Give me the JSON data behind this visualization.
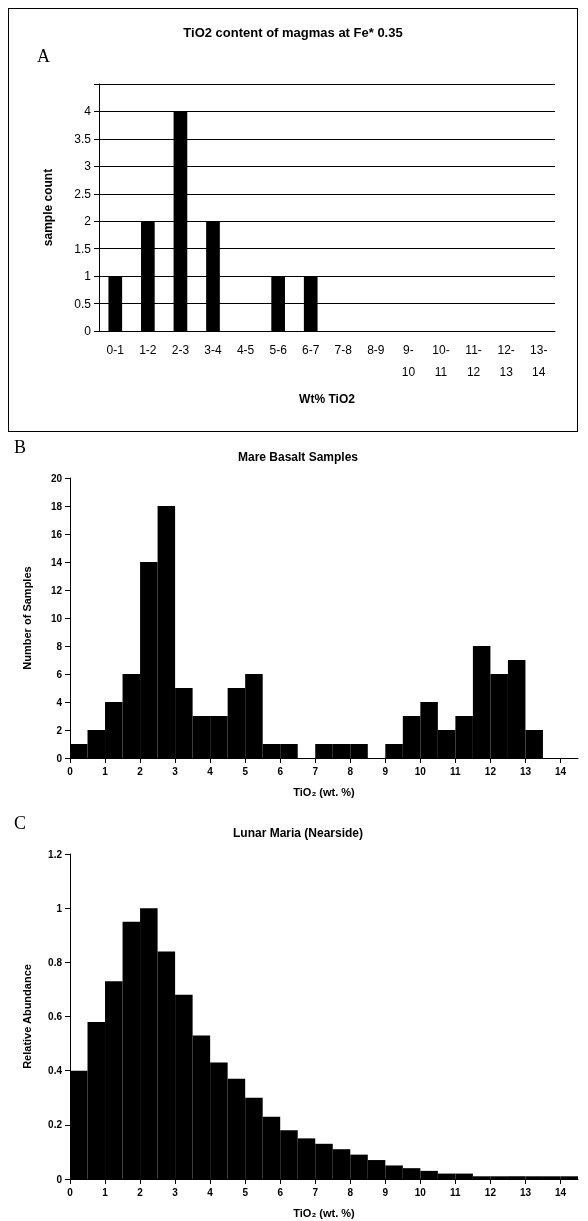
{
  "chart_data": [
    {
      "type": "bar",
      "title": "TiO2 content of magmas at Fe* 0.35",
      "xlabel": "Wt% TiO2",
      "ylabel": "sample count",
      "annotations": [
        "A"
      ],
      "categories": [
        "0-1",
        "1-2",
        "2-3",
        "3-4",
        "4-5",
        "5-6",
        "6-7",
        "7-8",
        "8-9",
        "9-10",
        "10-11",
        "11-12",
        "12-13",
        "13-14"
      ],
      "values": [
        1,
        2,
        4,
        2,
        0,
        1,
        1,
        0,
        0,
        0,
        0,
        0,
        0,
        0
      ],
      "color": "#000000",
      "ylim": [
        0,
        4.5
      ],
      "yticks": [
        0,
        0.5,
        1,
        1.5,
        2,
        2.5,
        3,
        3.5,
        4,
        {
          "value": 4.5,
          "label": null
        }
      ],
      "grid": "y"
    },
    {
      "type": "histogram",
      "title": "Mare Basalt Samples",
      "xlabel": "TiO₂ (wt. %)",
      "ylabel": "Number of Samples",
      "annotations": [
        "B"
      ],
      "bins": [
        0,
        0.5,
        1,
        1.5,
        2,
        2.5,
        3,
        3.5,
        4,
        4.5,
        5,
        5.5,
        6,
        6.5,
        7,
        7.5,
        8,
        8.5,
        9,
        9.5,
        10,
        10.5,
        11,
        11.5,
        12,
        12.5,
        13,
        13.5
      ],
      "values": [
        1,
        2,
        4,
        6,
        14,
        18,
        5,
        3,
        3,
        5,
        6,
        1,
        1,
        0,
        1,
        1,
        1,
        0,
        1,
        3,
        4,
        2,
        3,
        8,
        6,
        7,
        2
      ],
      "color": "#000000",
      "xlim": [
        0,
        14.5
      ],
      "xticks": [
        0,
        1,
        2,
        3,
        4,
        5,
        6,
        7,
        8,
        9,
        10,
        11,
        12,
        13,
        14
      ],
      "ylim": [
        0,
        20
      ],
      "yticks": [
        0,
        2,
        4,
        6,
        8,
        10,
        12,
        14,
        16,
        18,
        20
      ],
      "grid": false
    },
    {
      "type": "histogram",
      "title": "Lunar Maria (Nearside)",
      "xlabel": "TiO₂ (wt. %)",
      "ylabel": "Relative Abundance",
      "annotations": [
        "C"
      ],
      "bins": [
        0,
        0.5,
        1,
        1.5,
        2,
        2.5,
        3,
        3.5,
        4,
        4.5,
        5,
        5.5,
        6,
        6.5,
        7,
        7.5,
        8,
        8.5,
        9,
        9.5,
        10,
        10.5,
        11,
        11.5,
        12,
        12.5,
        13,
        13.5,
        14,
        14.5
      ],
      "values": [
        0.4,
        0.58,
        0.73,
        0.95,
        1.0,
        0.84,
        0.68,
        0.53,
        0.43,
        0.37,
        0.3,
        0.23,
        0.18,
        0.15,
        0.13,
        0.11,
        0.09,
        0.07,
        0.05,
        0.04,
        0.03,
        0.02,
        0.02,
        0.01,
        0.01,
        0.01,
        0.01,
        0.01,
        0.01
      ],
      "color": "#000000",
      "xlim": [
        0,
        14.5
      ],
      "xticks": [
        0,
        1,
        2,
        3,
        4,
        5,
        6,
        7,
        8,
        9,
        10,
        11,
        12,
        13,
        14
      ],
      "ylim": [
        0,
        1.2
      ],
      "yticks": [
        0,
        0.2,
        0.4,
        0.6,
        0.8,
        1,
        1.2
      ],
      "grid": false
    }
  ]
}
